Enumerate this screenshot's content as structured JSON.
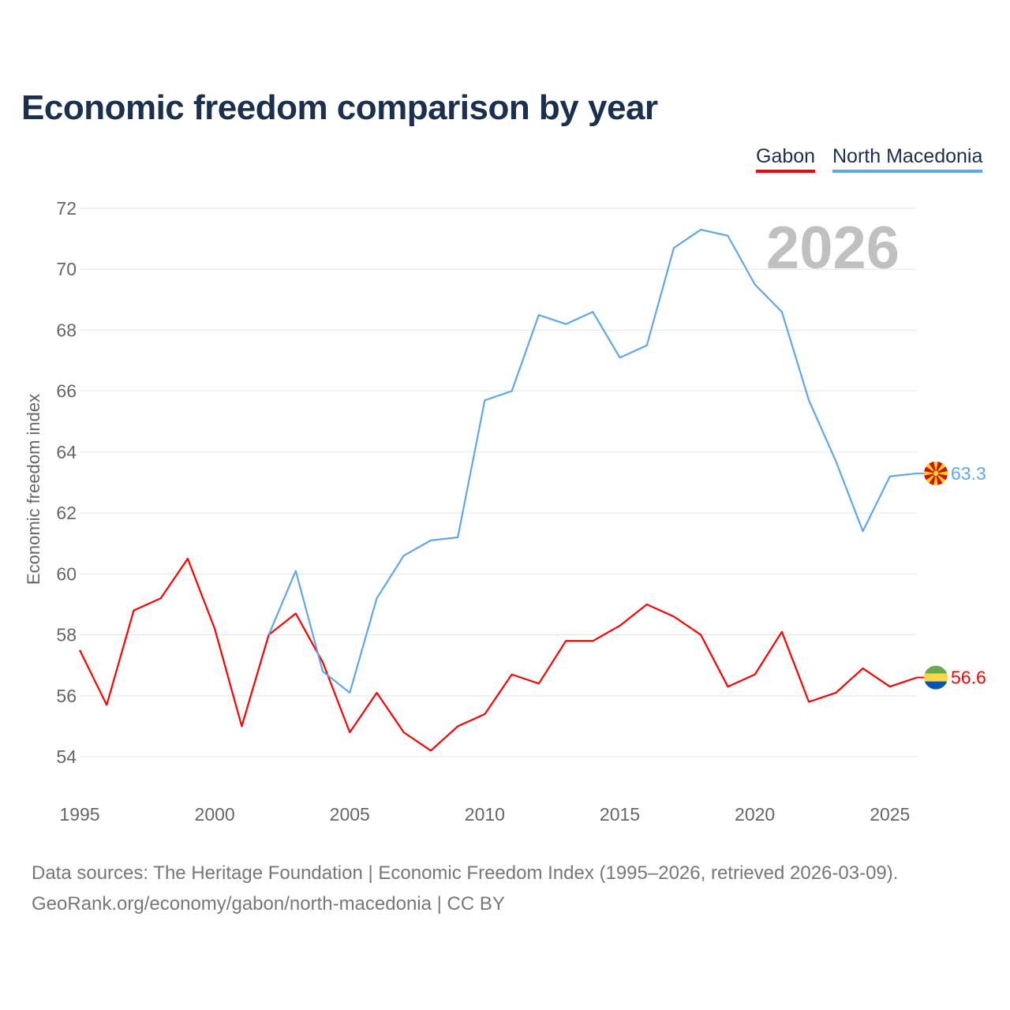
{
  "title": "Economic freedom comparison by year",
  "source_line1": "Data sources: The Heritage Foundation | Economic Freedom Index (1995–2026, retrieved 2026-03-09).",
  "source_line2": "GeoRank.org/economy/gabon/north-macedonia | CC BY",
  "chart_data": {
    "type": "line",
    "title": "Economic freedom comparison by year",
    "xlabel": "",
    "ylabel": "Economic freedom index",
    "xlim": [
      1995,
      2026
    ],
    "ylim": [
      54,
      72
    ],
    "xticks": [
      "1995",
      "2000",
      "2005",
      "2010",
      "2015",
      "2020",
      "2025"
    ],
    "yticks": [
      "54",
      "56",
      "58",
      "60",
      "62",
      "64",
      "66",
      "68",
      "70",
      "72"
    ],
    "grid": true,
    "legend_position": "top-right",
    "year_watermark": "2026",
    "series": [
      {
        "name": "Gabon",
        "color": "#ff0000",
        "end_label": "56.6",
        "flag": "gabon-flag",
        "x": [
          1995,
          1996,
          1997,
          1998,
          1999,
          2000,
          2001,
          2002,
          2003,
          2004,
          2005,
          2006,
          2007,
          2008,
          2009,
          2010,
          2011,
          2012,
          2013,
          2014,
          2015,
          2016,
          2017,
          2018,
          2019,
          2020,
          2021,
          2022,
          2023,
          2024,
          2025,
          2026
        ],
        "values": [
          57.5,
          55.7,
          58.8,
          59.2,
          60.5,
          58.2,
          55.0,
          58.0,
          58.7,
          57.1,
          54.8,
          56.1,
          54.8,
          54.2,
          55.0,
          55.4,
          56.7,
          56.4,
          57.8,
          57.8,
          58.3,
          59.0,
          58.6,
          58.0,
          56.3,
          56.7,
          58.1,
          55.8,
          56.1,
          56.9,
          56.3,
          56.6
        ]
      },
      {
        "name": "North Macedonia",
        "color": "#5ea8ea",
        "end_label": "63.3",
        "flag": "north-macedonia-flag",
        "x": [
          2002,
          2003,
          2004,
          2005,
          2006,
          2007,
          2008,
          2009,
          2010,
          2011,
          2012,
          2013,
          2014,
          2015,
          2016,
          2017,
          2018,
          2019,
          2020,
          2021,
          2022,
          2023,
          2024,
          2025,
          2026
        ],
        "values": [
          58.0,
          60.1,
          56.8,
          56.1,
          59.2,
          60.6,
          61.1,
          61.2,
          65.7,
          66.0,
          68.5,
          68.2,
          68.6,
          67.1,
          67.5,
          70.7,
          71.3,
          71.1,
          69.5,
          68.6,
          65.7,
          63.7,
          61.4,
          63.2,
          63.3
        ]
      }
    ]
  }
}
